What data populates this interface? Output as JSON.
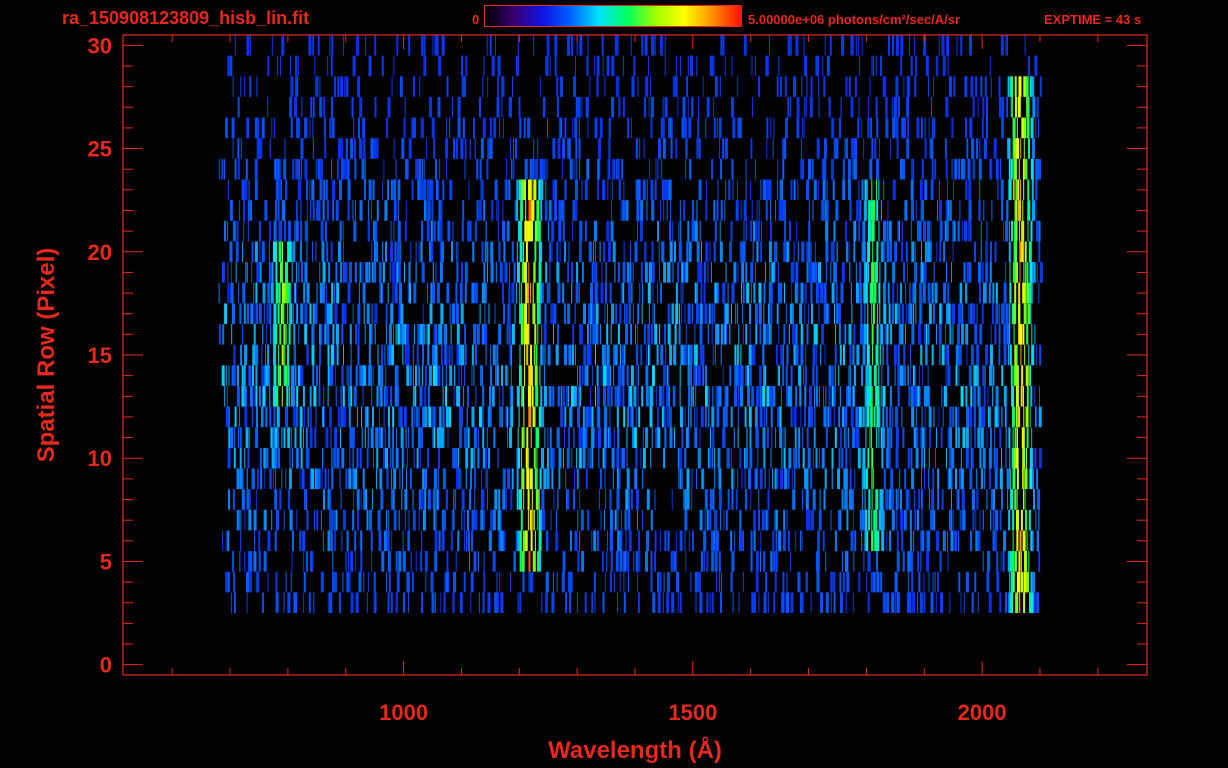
{
  "header": {
    "file_title": "ra_150908123809_hisb_lin.fit",
    "colorbar_min_label": "0",
    "colorbar_max_label": "5.00000e+06 photons/cm²/sec/A/sr",
    "exptime_label": "EXPTIME = 43 s"
  },
  "colors": {
    "axis": "#e8281c",
    "background": "#000000",
    "colormap": [
      "#000000",
      "#3a0070",
      "#1010e0",
      "#0060ff",
      "#00e0ff",
      "#00ff60",
      "#a0ff00",
      "#ffff00",
      "#ff9000",
      "#ff1000"
    ]
  },
  "chart_data": {
    "type": "heatmap",
    "xlabel": "Wavelength (Å)",
    "ylabel": "Spatial Row (Pixel)",
    "xlim": [
      515,
      2285
    ],
    "ylim": [
      -0.5,
      30.5
    ],
    "xticks": [
      1000,
      1500,
      2000
    ],
    "yticks": [
      0,
      5,
      10,
      15,
      20,
      25,
      30
    ],
    "colorbar": {
      "min": 0,
      "max": 5000000,
      "units": "photons/cm²/sec/A/sr"
    },
    "data_extent": {
      "x_range": [
        680,
        2100
      ],
      "rows_with_signal": [
        3,
        30
      ]
    },
    "emission_features": [
      {
        "wavelength": 1216,
        "rows": [
          5,
          23
        ],
        "relative_intensity": 0.95
      },
      {
        "wavelength": 789,
        "rows": [
          13,
          20
        ],
        "relative_intensity": 0.65
      },
      {
        "wavelength": 1810,
        "rows": [
          6,
          23
        ],
        "relative_intensity": 0.55
      },
      {
        "wavelength": 2065,
        "rows": [
          2,
          28
        ],
        "relative_intensity": 0.9
      }
    ]
  }
}
